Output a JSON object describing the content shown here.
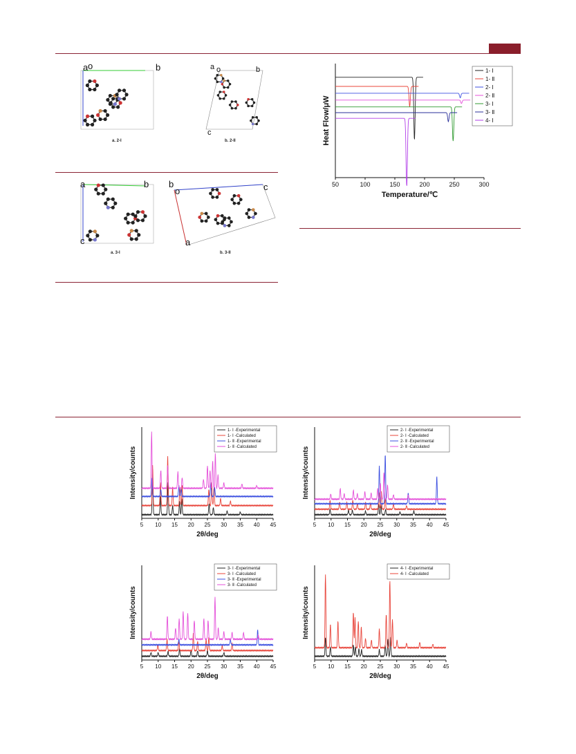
{
  "header": {
    "accent_color": "#8a1e2b"
  },
  "figures": {
    "packing_2": {
      "captions": [
        "a. 2-I",
        "b. 2-II"
      ],
      "axis_letters_a": [
        "a",
        "o",
        "b"
      ],
      "axis_letters_b": [
        "a",
        "o",
        "b",
        "c"
      ]
    },
    "packing_3": {
      "captions": [
        "a. 3-I",
        "b. 3-II"
      ],
      "axis_letters_a": [
        "a",
        "b",
        "c"
      ],
      "axis_letters_b": [
        "b",
        "o",
        "c",
        "a"
      ]
    }
  },
  "chart_data": [
    {
      "id": "dsc",
      "type": "line",
      "xlabel": "Temperature/℃",
      "ylabel": "Heat Flow/μW",
      "xlim": [
        50,
        300
      ],
      "xticks": [
        50,
        100,
        150,
        200,
        250,
        300
      ],
      "series": [
        {
          "name": "1- Ⅰ",
          "color": "#222222",
          "offset": 0.88,
          "peak_x": 183,
          "peak_depth": 0.55,
          "direction": -1
        },
        {
          "name": "1- Ⅱ",
          "color": "#e8443a",
          "offset": 0.8,
          "peak_x": 175,
          "peak_depth": 0.18,
          "direction": -1
        },
        {
          "name": "2- Ⅰ",
          "color": "#3b4fe0",
          "offset": 0.74,
          "peak_x": 260,
          "peak_depth": 0.04,
          "direction": -1
        },
        {
          "name": "2- Ⅱ",
          "color": "#e44fd9",
          "offset": 0.68,
          "peak_x": 262,
          "peak_depth": 0.03,
          "direction": -1
        },
        {
          "name": "3- Ⅰ",
          "color": "#2f9a2f",
          "offset": 0.62,
          "peak_x": 248,
          "peak_depth": 0.3,
          "direction": -1
        },
        {
          "name": "3- Ⅱ",
          "color": "#2a2f9a",
          "offset": 0.57,
          "peak_x": 240,
          "peak_depth": 0.08,
          "direction": -1
        },
        {
          "name": "4- Ⅰ",
          "color": "#b13ce8",
          "offset": 0.52,
          "peak_x": 170,
          "peak_depth": 0.6,
          "direction": -1
        }
      ]
    },
    {
      "id": "pxrd1",
      "type": "line",
      "xlabel": "2θ/deg",
      "ylabel": "Intensity/counts",
      "xlim": [
        5,
        45
      ],
      "xticks": [
        5,
        10,
        15,
        20,
        25,
        30,
        35,
        40,
        45
      ],
      "series": [
        {
          "name": "1- Ⅰ -Experimental",
          "color": "#222222",
          "offset": 0.04,
          "peaks": [
            [
              8.3,
              0.5
            ],
            [
              10.7,
              0.2
            ],
            [
              13.0,
              0.35
            ],
            [
              14.4,
              0.1
            ],
            [
              16.5,
              0.15
            ],
            [
              17.2,
              0.18
            ],
            [
              25.5,
              0.12
            ],
            [
              26.8,
              0.08
            ],
            [
              31,
              0.04
            ],
            [
              35,
              0.03
            ]
          ]
        },
        {
          "name": "1- Ⅰ -Calculated",
          "color": "#e8443a",
          "offset": 0.14,
          "peaks": [
            [
              8.3,
              0.45
            ],
            [
              10.7,
              0.25
            ],
            [
              12.9,
              0.55
            ],
            [
              14.4,
              0.2
            ],
            [
              16.6,
              0.2
            ],
            [
              17.3,
              0.22
            ],
            [
              25.4,
              0.18
            ],
            [
              26.3,
              0.25
            ],
            [
              27.0,
              0.2
            ],
            [
              29,
              0.08
            ],
            [
              32,
              0.05
            ]
          ]
        },
        {
          "name": "1- Ⅱ -Experimental",
          "color": "#3b4fe0",
          "offset": 0.24,
          "peaks": [
            [
              8.1,
              0.2
            ],
            [
              10.8,
              0.08
            ],
            [
              16.3,
              0.12
            ],
            [
              17.0,
              0.08
            ],
            [
              26.0,
              0.15
            ],
            [
              27.2,
              0.1
            ]
          ]
        },
        {
          "name": "1- Ⅱ -Calculated",
          "color": "#e44fd9",
          "offset": 0.33,
          "peaks": [
            [
              8.0,
              0.62
            ],
            [
              10.8,
              0.2
            ],
            [
              12.9,
              0.25
            ],
            [
              16.0,
              0.18
            ],
            [
              17.3,
              0.12
            ],
            [
              23.8,
              0.1
            ],
            [
              25.0,
              0.25
            ],
            [
              25.8,
              0.2
            ],
            [
              26.6,
              0.3
            ],
            [
              27.4,
              0.38
            ],
            [
              28.2,
              0.15
            ],
            [
              30,
              0.06
            ],
            [
              35.5,
              0.05
            ],
            [
              40,
              0.03
            ]
          ]
        }
      ]
    },
    {
      "id": "pxrd2",
      "type": "line",
      "xlabel": "2θ/deg",
      "ylabel": "Intensity/counts",
      "xlim": [
        5,
        45
      ],
      "xticks": [
        5,
        10,
        15,
        20,
        25,
        30,
        35,
        40,
        45
      ],
      "series": [
        {
          "name": "2- Ⅰ -Experimental",
          "color": "#222222",
          "offset": 0.04,
          "peaks": [
            [
              9.7,
              0.06
            ],
            [
              15.3,
              0.05
            ],
            [
              16.5,
              0.05
            ],
            [
              20.5,
              0.04
            ],
            [
              24.5,
              0.12
            ],
            [
              25.2,
              0.1
            ],
            [
              26.6,
              0.06
            ],
            [
              31,
              0.03
            ],
            [
              35.2,
              0.04
            ]
          ]
        },
        {
          "name": "2- Ⅰ -Calculated",
          "color": "#e8443a",
          "offset": 0.1,
          "peaks": [
            [
              9.7,
              0.1
            ],
            [
              12.6,
              0.08
            ],
            [
              14.8,
              0.08
            ],
            [
              16.6,
              0.1
            ],
            [
              18,
              0.06
            ],
            [
              20.5,
              0.08
            ],
            [
              22,
              0.07
            ],
            [
              24.6,
              0.18
            ],
            [
              25.3,
              0.2
            ],
            [
              26.5,
              0.12
            ],
            [
              29,
              0.06
            ],
            [
              33,
              0.04
            ]
          ]
        },
        {
          "name": "2- Ⅱ -Experimental",
          "color": "#3b4fe0",
          "offset": 0.16,
          "peaks": [
            [
              24.7,
              0.42
            ],
            [
              26.5,
              0.55
            ],
            [
              33.5,
              0.12
            ],
            [
              42.2,
              0.3
            ]
          ]
        },
        {
          "name": "2- Ⅱ -Calculated",
          "color": "#e44fd9",
          "offset": 0.21,
          "peaks": [
            [
              9.9,
              0.06
            ],
            [
              12.8,
              0.12
            ],
            [
              14,
              0.06
            ],
            [
              16.8,
              0.1
            ],
            [
              18,
              0.06
            ],
            [
              20.3,
              0.08
            ],
            [
              22.2,
              0.07
            ],
            [
              24.2,
              0.12
            ],
            [
              25.0,
              0.18
            ],
            [
              26.1,
              0.3
            ],
            [
              27.2,
              0.16
            ],
            [
              29,
              0.05
            ],
            [
              33.5,
              0.05
            ]
          ]
        }
      ]
    },
    {
      "id": "pxrd3",
      "type": "line",
      "xlabel": "2θ/deg",
      "ylabel": "Intensity/counts",
      "xlim": [
        5,
        45
      ],
      "xticks": [
        5,
        10,
        15,
        20,
        25,
        30,
        35,
        40,
        45
      ],
      "series": [
        {
          "name": "3- Ⅰ -Experimental",
          "color": "#222222",
          "offset": 0.04,
          "peaks": [
            [
              7.8,
              0.04
            ],
            [
              10,
              0.04
            ],
            [
              13,
              0.05
            ],
            [
              16.5,
              0.08
            ],
            [
              20,
              0.06
            ],
            [
              22,
              0.06
            ],
            [
              25,
              0.06
            ],
            [
              30,
              0.04
            ]
          ]
        },
        {
          "name": "3- Ⅰ -Calculated",
          "color": "#e8443a",
          "offset": 0.1,
          "peaks": [
            [
              9.9,
              0.06
            ],
            [
              12.7,
              0.12
            ],
            [
              16.3,
              0.1
            ],
            [
              20.7,
              0.18
            ],
            [
              22,
              0.1
            ],
            [
              24.6,
              0.12
            ],
            [
              25.4,
              0.14
            ],
            [
              29.5,
              0.05
            ],
            [
              32.5,
              0.08
            ]
          ]
        },
        {
          "name": "3- Ⅱ -Experimental",
          "color": "#3b4fe0",
          "offset": 0.16,
          "peaks": [
            [
              16.3,
              0.06
            ],
            [
              32,
              0.06
            ],
            [
              40.3,
              0.16
            ]
          ]
        },
        {
          "name": "3- Ⅱ -Calculated",
          "color": "#e44fd9",
          "offset": 0.22,
          "peaks": [
            [
              7.8,
              0.08
            ],
            [
              12.8,
              0.25
            ],
            [
              15.3,
              0.12
            ],
            [
              16.4,
              0.22
            ],
            [
              17.6,
              0.3
            ],
            [
              19,
              0.28
            ],
            [
              21,
              0.2
            ],
            [
              23.9,
              0.22
            ],
            [
              25.2,
              0.2
            ],
            [
              27.3,
              0.45
            ],
            [
              28.3,
              0.12
            ],
            [
              30,
              0.08
            ],
            [
              32.5,
              0.07
            ],
            [
              36,
              0.07
            ],
            [
              40.5,
              0.04
            ]
          ]
        }
      ]
    },
    {
      "id": "pxrd4",
      "type": "line",
      "xlabel": "2θ/deg",
      "ylabel": "Intensity/counts",
      "xlim": [
        5,
        45
      ],
      "xticks": [
        5,
        10,
        15,
        20,
        25,
        30,
        35,
        40,
        45
      ],
      "series": [
        {
          "name": "4- Ⅰ -Experimental",
          "color": "#222222",
          "offset": 0.04,
          "peaks": [
            [
              8.3,
              0.2
            ],
            [
              9.8,
              0.1
            ],
            [
              16.8,
              0.12
            ],
            [
              17.4,
              0.1
            ],
            [
              18.5,
              0.08
            ],
            [
              19.3,
              0.07
            ],
            [
              24.7,
              0.07
            ],
            [
              26.5,
              0.12
            ],
            [
              27.3,
              0.18
            ],
            [
              28.1,
              0.2
            ]
          ]
        },
        {
          "name": "4- Ⅰ -Calculated",
          "color": "#e8443a",
          "offset": 0.13,
          "peaks": [
            [
              8.3,
              0.78
            ],
            [
              9.8,
              0.25
            ],
            [
              12.1,
              0.28
            ],
            [
              16.8,
              0.38
            ],
            [
              17.3,
              0.32
            ],
            [
              18.3,
              0.28
            ],
            [
              19.2,
              0.22
            ],
            [
              20.5,
              0.1
            ],
            [
              22.3,
              0.08
            ],
            [
              24.7,
              0.2
            ],
            [
              26.8,
              0.36
            ],
            [
              27.9,
              0.72
            ],
            [
              28.7,
              0.3
            ],
            [
              30.1,
              0.08
            ],
            [
              33,
              0.05
            ],
            [
              37,
              0.06
            ],
            [
              41,
              0.04
            ]
          ]
        }
      ]
    }
  ]
}
